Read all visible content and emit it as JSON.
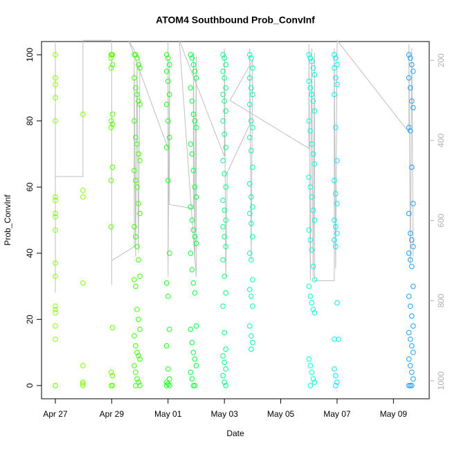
{
  "chart_data": {
    "type": "scatter",
    "title": "ATOM4 Southbound Prob_ConvInf",
    "x_label": "Date",
    "y_label": "Prob_ConvInf",
    "xlim": [
      -0.49,
      13.27
    ],
    "xticks": [
      {
        "value": 0,
        "label": "Apr 27"
      },
      {
        "value": 2,
        "label": "Apr 29"
      },
      {
        "value": 4,
        "label": "May 01"
      },
      {
        "value": 6,
        "label": "May 03"
      },
      {
        "value": 8,
        "label": "May 05"
      },
      {
        "value": 10,
        "label": "May 07"
      },
      {
        "value": 12,
        "label": "May 09"
      }
    ],
    "ylim": [
      -4,
      104
    ],
    "yticks": [
      0,
      20,
      40,
      60,
      80,
      100
    ],
    "y2lim": [
      1045,
      153
    ],
    "y2ticks": [
      200,
      400,
      600,
      800,
      1000
    ],
    "series": [
      {
        "axis": "y2",
        "color": "#bebebe",
        "x": [
          0,
          0,
          0,
          0,
          0.98,
          0.98,
          2.0,
          2.0,
          2.0,
          2.8,
          2.8,
          2.85,
          2.9,
          2.95,
          3.0,
          2.6,
          4.0,
          4.0,
          4.0,
          4.05,
          4.05,
          4.9,
          4.9,
          4.95,
          5.0,
          5.0,
          4.4,
          6.0,
          6.0,
          6.05,
          6.1,
          6.9,
          6.9,
          6.95,
          7.0,
          6.2,
          9.0,
          9.0,
          9.05,
          9.1,
          9.15,
          9.2,
          9.2,
          9.9,
          9.9,
          9.95,
          10.0,
          10.0,
          12.55,
          12.55,
          12.6,
          12.65,
          12.7
        ],
        "values": [
          150,
          780,
          740,
          490,
          490,
          150,
          150,
          760,
          700,
          665,
          200,
          690,
          210,
          680,
          200,
          150,
          420,
          150,
          740,
          200,
          560,
          570,
          180,
          700,
          190,
          740,
          150,
          440,
          170,
          740,
          480,
          360,
          170,
          700,
          200,
          300,
          420,
          160,
          750,
          170,
          740,
          180,
          750,
          750,
          170,
          720,
          160,
          150,
          380,
          160,
          710,
          170,
          690
        ]
      },
      {
        "color": "#80ff00",
        "x": [
          0,
          0,
          0,
          0,
          0,
          0,
          0,
          0,
          0,
          0,
          0,
          0,
          0,
          0,
          0,
          0,
          0,
          0,
          0,
          0
        ],
        "values": [
          100,
          93,
          91,
          87,
          80,
          57,
          56,
          52,
          51,
          47,
          37,
          33,
          24,
          23,
          22,
          18,
          14,
          0,
          0,
          0
        ]
      },
      {
        "color": "#7cff00",
        "x": [
          0.98,
          0.98,
          0.98,
          0.98,
          0.98,
          0.98,
          0.98,
          0.98
        ],
        "values": [
          82,
          59,
          57,
          31,
          6,
          1,
          0.5,
          0
        ]
      },
      {
        "color": "#5aff00",
        "x": [
          1.98,
          2.03,
          1.98,
          2.03,
          1.98,
          2.03,
          1.98,
          2.03,
          1.98,
          2.03,
          1.98,
          1.98,
          2.03,
          1.98,
          2.03,
          1.98,
          2.03,
          2.0
        ],
        "values": [
          100,
          100,
          99,
          97,
          96,
          82,
          80,
          79,
          78,
          66,
          62,
          48,
          17.5,
          4,
          3,
          0,
          0,
          100
        ]
      },
      {
        "color": "#38ff00",
        "x": [
          2.8,
          2.85,
          2.9,
          2.95,
          3.0,
          2.8,
          2.85,
          2.9,
          2.95,
          3.0,
          2.8,
          2.85,
          2.9,
          2.95,
          3.0,
          2.8,
          2.85,
          2.9,
          2.95,
          3.0,
          2.8,
          2.85,
          2.9,
          2.95,
          3.0,
          2.8,
          2.85,
          2.9,
          2.95,
          3.0,
          2.8,
          2.85,
          2.9,
          2.95,
          3.0,
          2.8,
          2.85,
          2.9,
          2.95,
          3.0,
          2.85
        ],
        "values": [
          100,
          100,
          99,
          97,
          96,
          93,
          90,
          88,
          86,
          85,
          80,
          75,
          73,
          70,
          68,
          65,
          62,
          60,
          55,
          52,
          48,
          45,
          42,
          38,
          33,
          32,
          30,
          23,
          20,
          17,
          15,
          12,
          10,
          9,
          8,
          6,
          4,
          2,
          1,
          0,
          0
        ]
      },
      {
        "color": "#1aff1a",
        "x": [
          3.95,
          4.0,
          4.05,
          3.95,
          4.0,
          4.05,
          3.95,
          4.0,
          4.05,
          3.95,
          4.0,
          4.05,
          3.95,
          4.0,
          4.05,
          3.95,
          4.0,
          4.05,
          3.95,
          4.0,
          4.05,
          3.95
        ],
        "values": [
          100,
          99,
          97,
          95,
          92,
          88,
          85,
          80,
          75,
          72,
          62,
          40,
          31,
          27,
          17,
          12,
          5,
          2,
          1,
          0.5,
          0,
          0
        ]
      },
      {
        "color": "#00ff40",
        "x": [
          4.8,
          4.85,
          4.9,
          4.95,
          5.0,
          4.8,
          4.85,
          4.9,
          4.95,
          5.0,
          4.8,
          4.85,
          4.9,
          4.95,
          5.0,
          4.8,
          4.85,
          4.9,
          4.95,
          5.0,
          4.8,
          4.85,
          4.9,
          4.95,
          5.0,
          4.8,
          4.85,
          4.9,
          4.95,
          5.0,
          4.8,
          4.85,
          4.9,
          4.95
        ],
        "values": [
          100,
          99,
          97,
          95,
          93,
          90,
          86,
          82,
          80,
          78,
          73,
          70,
          65,
          60,
          57,
          54,
          50,
          47,
          45,
          43,
          40,
          35,
          31,
          28,
          18,
          17,
          13,
          10,
          8,
          6,
          4,
          2,
          0,
          0
        ]
      },
      {
        "color": "#00ff80",
        "x": [
          5.95,
          6.0,
          6.05,
          5.95,
          6.0,
          6.05,
          5.95,
          6.0,
          6.05,
          5.95,
          6.0,
          6.05,
          5.95,
          6.0,
          6.05,
          5.95,
          6.0,
          6.05,
          5.95,
          6.0,
          6.05,
          5.95,
          6.0,
          6.05,
          5.95,
          6.0,
          6.05,
          5.95,
          6.0,
          6.05,
          5.95,
          6.0,
          6.05
        ],
        "values": [
          100,
          99,
          97,
          95,
          93,
          90,
          88,
          86,
          83,
          80,
          76,
          72,
          68,
          64,
          60,
          56,
          53,
          50,
          48,
          45,
          42,
          38,
          33,
          28,
          24,
          16,
          11,
          9,
          7,
          5,
          3,
          1,
          0
        ]
      },
      {
        "color": "#00ffa8",
        "x": [
          6.9,
          6.95,
          7.0,
          6.9,
          6.95,
          7.0,
          6.9,
          6.95,
          7.0,
          6.9,
          6.95,
          7.0,
          6.9,
          6.95,
          7.0,
          6.9,
          6.95,
          7.0,
          6.9,
          6.95,
          7.0,
          6.9,
          6.95,
          7.0,
          6.9,
          6.95,
          7.0,
          6.95
        ],
        "values": [
          100,
          99,
          96,
          93,
          90,
          88,
          85,
          80,
          78,
          75,
          71,
          66,
          61,
          57,
          54,
          52,
          49,
          45,
          40,
          38,
          32,
          29,
          27,
          24,
          18,
          15,
          13,
          11
        ]
      },
      {
        "color": "#00ffe0",
        "x": [
          9.0,
          9.05,
          9.1,
          9.15,
          9.2,
          9.0,
          9.05,
          9.1,
          9.15,
          9.2,
          9.0,
          9.05,
          9.1,
          9.15,
          9.2,
          9.0,
          9.05,
          9.1,
          9.15,
          9.2,
          9.0,
          9.05,
          9.1,
          9.15,
          9.2,
          9.0,
          9.05,
          9.1,
          9.15,
          9.2,
          9.0,
          9.05,
          9.1,
          9.15,
          9.2,
          9.05
        ],
        "values": [
          100,
          99,
          98,
          96,
          94,
          92,
          90,
          88,
          86,
          83,
          80,
          77,
          73,
          70,
          67,
          63,
          60,
          57,
          53,
          50,
          47,
          44,
          41,
          36,
          32,
          30,
          27,
          25,
          23,
          22,
          8,
          6,
          4,
          2,
          1,
          0
        ]
      },
      {
        "color": "#00eaff",
        "x": [
          9.9,
          9.95,
          10.0,
          9.9,
          9.95,
          10.0,
          9.9,
          9.95,
          10.0,
          9.9,
          9.95,
          10.0,
          9.9,
          9.95,
          10.0,
          9.9,
          9.95,
          10.0,
          9.9,
          10.05,
          9.9,
          9.95,
          10.0,
          9.95
        ],
        "values": [
          100,
          99,
          97,
          96,
          93,
          91,
          88,
          78,
          68,
          62,
          58,
          55,
          50,
          48,
          46,
          44,
          42,
          25,
          14,
          14,
          5,
          3,
          1,
          0
        ]
      },
      {
        "color": "#1a9fff",
        "x": [
          12.55,
          12.6,
          12.65,
          12.7,
          12.55,
          12.6,
          12.65,
          12.7,
          12.55,
          12.6,
          12.65,
          12.7,
          12.55,
          12.6,
          12.65,
          12.7,
          12.55,
          12.6,
          12.65,
          12.7,
          12.55,
          12.6,
          12.65,
          12.7,
          12.55,
          12.6,
          12.65,
          12.7,
          12.55,
          12.6,
          12.65,
          12.7,
          12.55,
          12.6,
          12.65
        ],
        "values": [
          100,
          99,
          97,
          95,
          93,
          90,
          86,
          84,
          78,
          77,
          66,
          55,
          52,
          46,
          44,
          42,
          40,
          38,
          36,
          30,
          27,
          24,
          21,
          18,
          16,
          14,
          12,
          10,
          8,
          6,
          4,
          2,
          0,
          0,
          0
        ]
      }
    ]
  }
}
